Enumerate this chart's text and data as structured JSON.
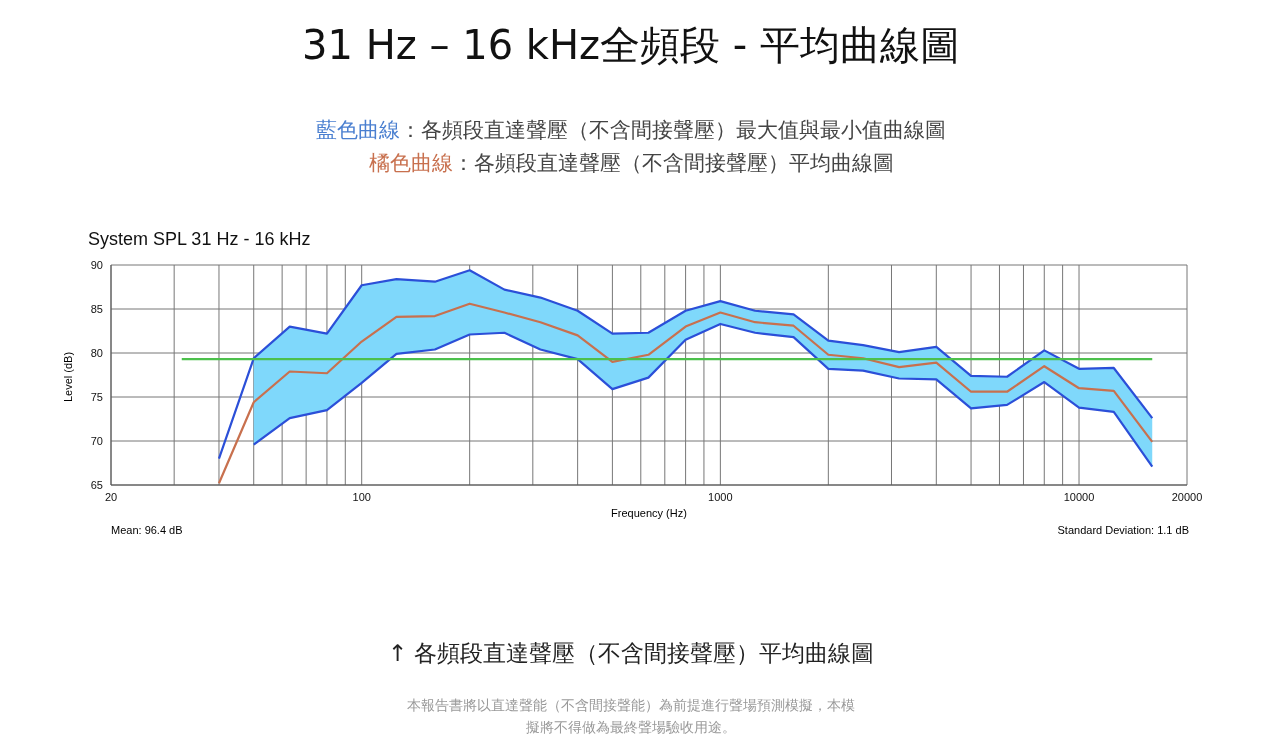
{
  "chart_data": {
    "type": "line",
    "title": "31 Hz – 16 kHz全頻段 - 平均曲線圖",
    "subtitle": "System SPL 31 Hz - 16 kHz",
    "xlabel": "Frequency (Hz)",
    "ylabel": "Level (dB)",
    "annotations": [
      "藍色曲線：各頻段直達聲壓（不含間接聲壓）最大值與最小值曲線圖",
      "橘色曲線：各頻段直達聲壓（不含間接聲壓）平均曲線圖",
      "Mean: 96.4 dB",
      "Standard Deviation: 1.1 dB",
      "↑ 各頻段直達聲壓（不含間接聲壓）平均曲線圖",
      "本報告書將以直達聲能（不含間接聲能）為前提進行聲場預測模擬，本模擬將不得做為最終聲場驗收用途。"
    ],
    "x": [
      40,
      50,
      63,
      80,
      100,
      125,
      160,
      200,
      250,
      315,
      400,
      500,
      630,
      800,
      1000,
      1250,
      1600,
      2000,
      2500,
      3150,
      4000,
      5000,
      6300,
      8000,
      10000,
      12500,
      16000
    ],
    "series": [
      {
        "type": "line",
        "color": "#2b4fd8",
        "values": [
          68.0,
          79.4,
          83.0,
          82.2,
          87.7,
          88.4,
          88.1,
          89.4,
          87.2,
          86.3,
          84.8,
          82.2,
          82.3,
          84.8,
          85.9,
          84.8,
          84.4,
          81.4,
          80.9,
          80.1,
          80.7,
          77.4,
          77.3,
          80.3,
          78.2,
          78.3,
          72.6
        ]
      },
      {
        "type": "line",
        "color": "#2b4fd8",
        "values": [
          null,
          69.6,
          72.6,
          73.5,
          76.6,
          79.9,
          80.4,
          82.1,
          82.3,
          80.4,
          79.3,
          75.9,
          77.2,
          81.5,
          83.3,
          82.3,
          81.8,
          78.2,
          78.0,
          77.1,
          77.0,
          73.7,
          74.1,
          76.7,
          73.8,
          73.3,
          67.1
        ]
      },
      {
        "color": "#c8704e",
        "values": [
          65.2,
          74.4,
          77.9,
          77.7,
          81.3,
          84.1,
          84.2,
          85.6,
          84.6,
          83.5,
          82.0,
          79.0,
          79.8,
          83.0,
          84.6,
          83.5,
          83.1,
          79.8,
          79.4,
          78.4,
          78.9,
          75.6,
          75.6,
          78.5,
          76.0,
          75.7,
          69.9
        ],
        "upper": [
          null,
          79.4,
          83.0,
          82.2,
          87.7,
          88.4,
          88.1,
          89.4,
          87.2,
          86.3,
          84.8,
          82.2,
          82.3,
          84.8,
          85.9,
          84.8,
          84.4,
          81.4,
          80.9,
          80.1,
          80.7,
          77.4,
          77.3,
          80.3,
          78.2,
          78.3,
          72.6
        ],
        "lower": [
          null,
          69.6,
          72.6,
          73.5,
          76.6,
          79.9,
          80.4,
          82.1,
          82.3,
          80.4,
          79.3,
          75.9,
          77.2,
          81.5,
          83.3,
          82.3,
          81.8,
          78.2,
          78.0,
          77.1,
          77.0,
          73.7,
          74.1,
          76.7,
          73.8,
          73.3,
          67.1
        ]
      },
      {
        "type": "line",
        "color": "#4cc04c",
        "x": [
          31.5,
          16000
        ],
        "values": [
          79.3,
          79.3
        ]
      }
    ],
    "log": "x",
    "xlim": [
      20,
      20000
    ],
    "xticks": [
      20,
      {
        "value": 30,
        "label": null
      },
      {
        "value": 40,
        "label": null
      },
      {
        "value": 50,
        "label": null
      },
      {
        "value": 60,
        "label": null
      },
      {
        "value": 70,
        "label": null
      },
      {
        "value": 80,
        "label": null
      },
      {
        "value": 90,
        "label": null
      },
      100,
      {
        "value": 200,
        "label": null
      },
      {
        "value": 300,
        "label": null
      },
      {
        "value": 400,
        "label": null
      },
      {
        "value": 500,
        "label": null
      },
      {
        "value": 600,
        "label": null
      },
      {
        "value": 700,
        "label": null
      },
      {
        "value": 800,
        "label": null
      },
      {
        "value": 900,
        "label": null
      },
      1000,
      {
        "value": 2000,
        "label": null
      },
      {
        "value": 3000,
        "label": null
      },
      {
        "value": 4000,
        "label": null
      },
      {
        "value": 5000,
        "label": null
      },
      {
        "value": 6000,
        "label": null
      },
      {
        "value": 7000,
        "label": null
      },
      {
        "value": 8000,
        "label": null
      },
      {
        "value": 9000,
        "label": null
      },
      10000,
      20000
    ],
    "ylim": [
      65,
      90
    ],
    "yticks": [
      65,
      70,
      75,
      80,
      85,
      90
    ],
    "grid": true,
    "legend": false,
    "marker": "none",
    "line_style": "solid"
  }
}
